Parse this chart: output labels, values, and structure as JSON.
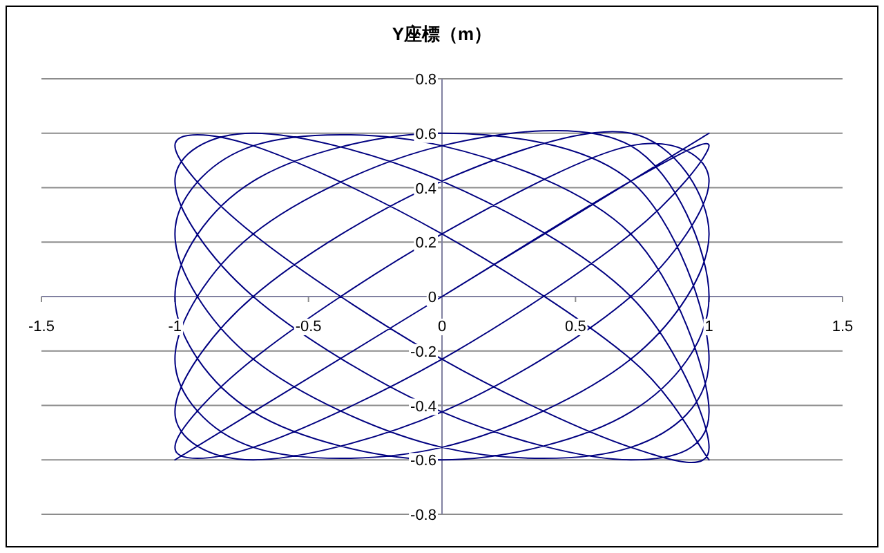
{
  "chart_data": {
    "type": "line",
    "title": "Y座標（m）",
    "color": "#000080",
    "xlim": [
      -1.5,
      1.5
    ],
    "xticks": [
      -1.5,
      -1,
      -0.5,
      0,
      0.5,
      1,
      1.5
    ],
    "ylim": [
      -0.8,
      0.8
    ],
    "yticks": [
      -0.8,
      -0.6,
      -0.4,
      -0.2,
      0,
      0.2,
      0.4,
      0.6,
      0.8
    ],
    "grid": "y",
    "marker": "none",
    "line_style": "solid",
    "x": [
      1,
      0.707,
      0,
      -0.707,
      -1,
      -0.707,
      0,
      0.707,
      1,
      0.707,
      0,
      -0.707,
      -1,
      -0.707,
      0,
      0.707,
      1,
      0.707,
      0,
      -0.707,
      -1,
      -0.707,
      0,
      0.707,
      1,
      0.707,
      0,
      -0.707,
      -1,
      -0.707,
      0,
      0.707,
      1,
      0.707,
      0,
      -0.707,
      -1,
      -0.707,
      0,
      0.707,
      1,
      0.707,
      0,
      -0.707,
      -1,
      -0.707,
      0,
      0.707,
      1,
      0.707,
      0,
      -0.707,
      -1,
      -0.707,
      0,
      0.707,
      1,
      0.707,
      0,
      -0.707,
      -1,
      -0.707,
      0,
      0.707,
      1
    ],
    "values": [
      0.6,
      0.424,
      0,
      -0.424,
      -0.6,
      -0.424,
      0,
      0.424,
      0.554,
      0.23,
      -0.23,
      -0.554,
      -0.554,
      -0.23,
      0.23,
      0.554,
      0.424,
      0,
      -0.424,
      -0.6,
      -0.424,
      0,
      0.424,
      0.6,
      0.23,
      -0.23,
      -0.554,
      -0.554,
      -0.23,
      0.23,
      0.554,
      0.554,
      0,
      -0.424,
      -0.6,
      -0.424,
      0,
      0.424,
      0.6,
      0.424,
      -0.23,
      -0.554,
      -0.554,
      -0.23,
      0.23,
      0.554,
      0.554,
      0.23,
      -0.424,
      -0.6,
      -0.424,
      0,
      0.424,
      0.6,
      0.424,
      0,
      -0.554,
      -0.554,
      -0.23,
      0.23,
      0.554,
      0.554,
      0.23,
      -0.23,
      -0.6
    ]
  }
}
